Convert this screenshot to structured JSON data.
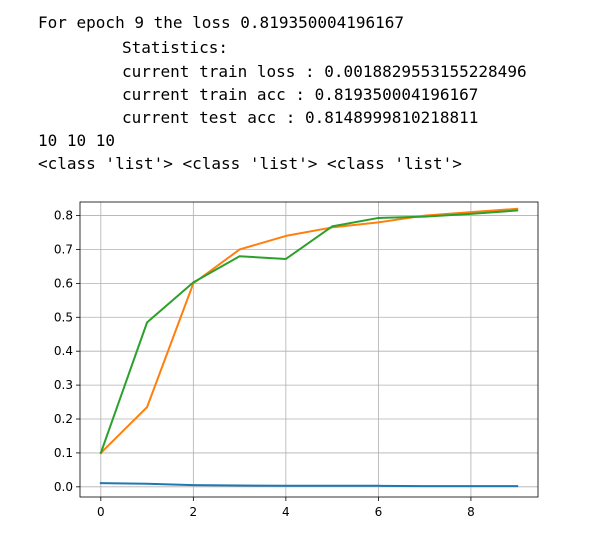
{
  "output": {
    "lines": [
      "For epoch 9 the loss 0.819350004196167",
      "Statistics:",
      "current train loss : 0.0018829553155228496",
      "current train acc : 0.819350004196167",
      "current test acc : 0.8148999810218811",
      "10 10 10",
      "<class 'list'> <class 'list'> <class 'list'>"
    ]
  },
  "chart_data": {
    "type": "line",
    "x": [
      0,
      1,
      2,
      3,
      4,
      5,
      6,
      7,
      8,
      9
    ],
    "xlim": [
      -0.45,
      9.45
    ],
    "ylim": [
      -0.03,
      0.84
    ],
    "xticks": [
      "0",
      "2",
      "4",
      "6",
      "8"
    ],
    "yticks": [
      "0.0",
      "0.1",
      "0.2",
      "0.3",
      "0.4",
      "0.5",
      "0.6",
      "0.7",
      "0.8"
    ],
    "grid": true,
    "series": [
      {
        "color": "#1f77b4",
        "values": [
          0.011,
          0.009,
          0.005,
          0.004,
          0.003,
          0.003,
          0.003,
          0.002,
          0.002,
          0.002
        ]
      },
      {
        "color": "#ff7f0e",
        "values": [
          0.1,
          0.235,
          0.6,
          0.7,
          0.74,
          0.765,
          0.78,
          0.8,
          0.81,
          0.82
        ]
      },
      {
        "color": "#2ca02c",
        "values": [
          0.1,
          0.485,
          0.603,
          0.68,
          0.672,
          0.768,
          0.793,
          0.797,
          0.805,
          0.815
        ]
      }
    ]
  }
}
